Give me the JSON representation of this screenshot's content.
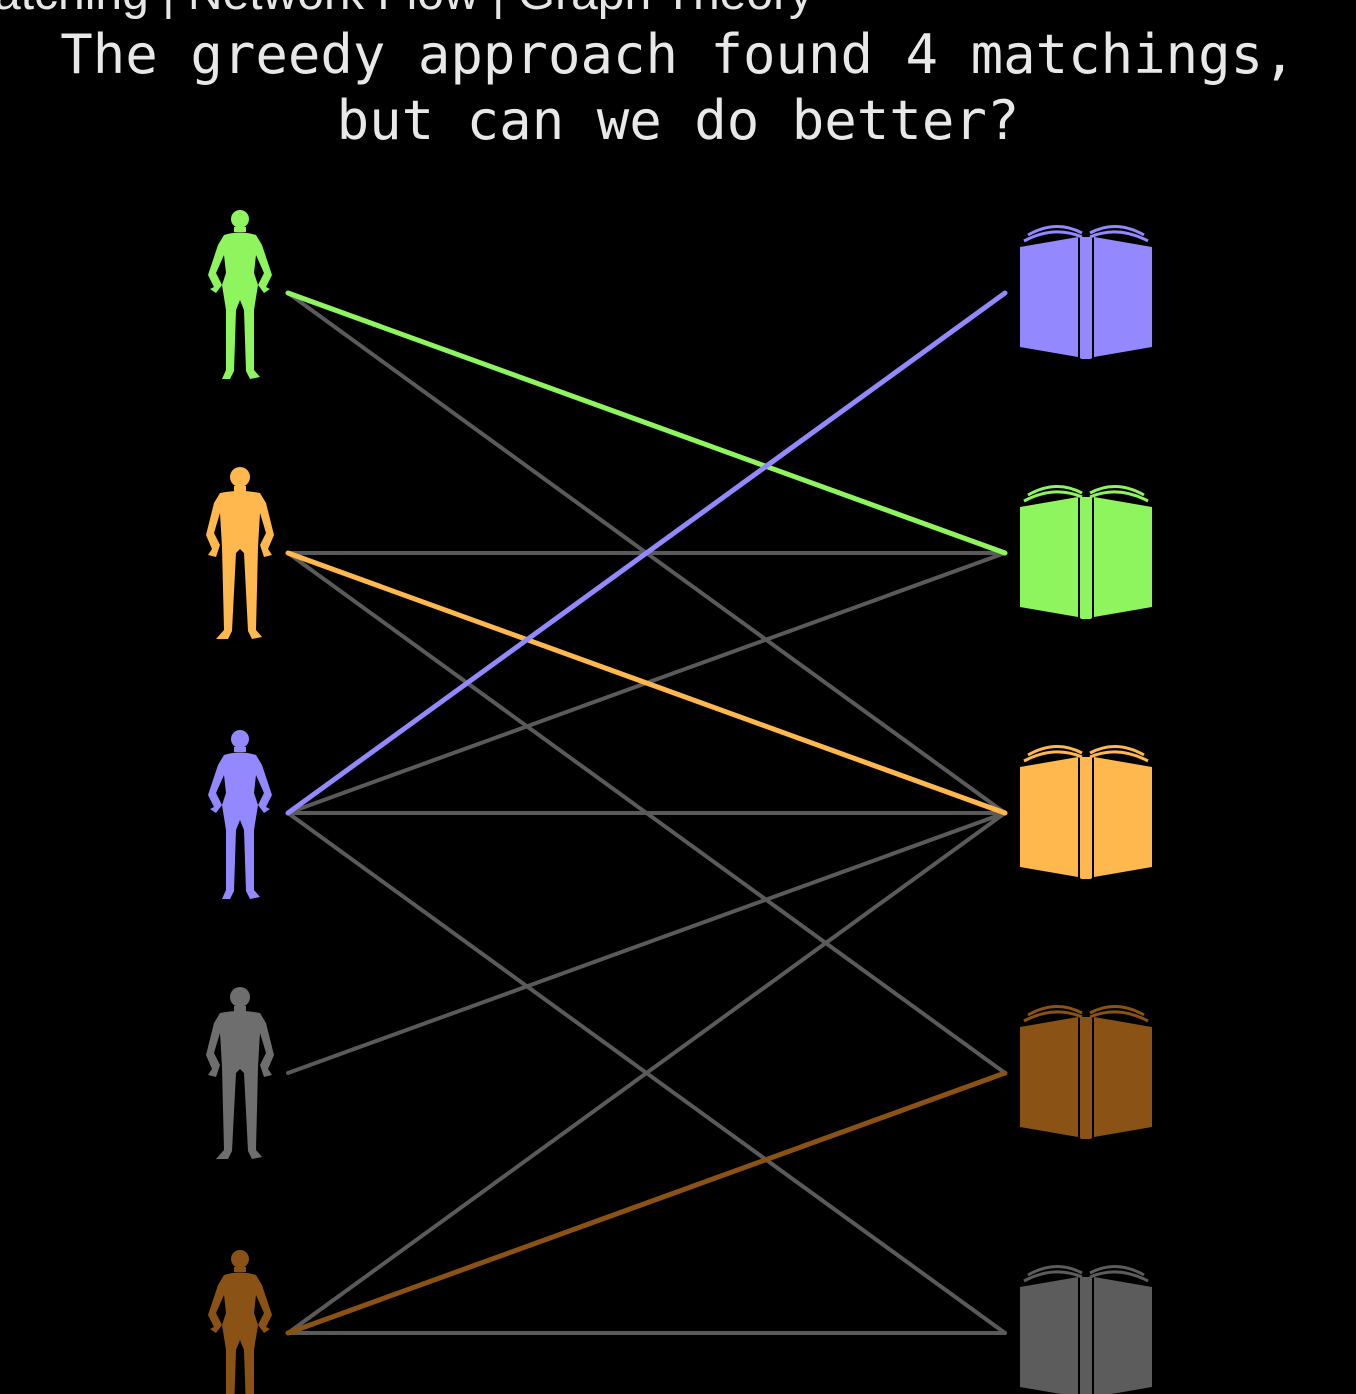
{
  "video_title": "atching | Network Flow | Graph Theory",
  "caption": {
    "line1": "The greedy approach found 4 matchings,",
    "line2": "but can we do better?"
  },
  "people": [
    {
      "name": "person-1",
      "color": "#8ff55f",
      "figure": "woman"
    },
    {
      "name": "person-2",
      "color": "#ffb84d",
      "figure": "man"
    },
    {
      "name": "person-3",
      "color": "#9488ff",
      "figure": "woman"
    },
    {
      "name": "person-4",
      "color": "#6e6e6e",
      "figure": "man"
    },
    {
      "name": "person-5",
      "color": "#8a5214",
      "figure": "woman"
    }
  ],
  "books": [
    {
      "name": "book-1",
      "color": "#9488ff"
    },
    {
      "name": "book-2",
      "color": "#8ff55f"
    },
    {
      "name": "book-3",
      "color": "#ffb84d"
    },
    {
      "name": "book-4",
      "color": "#8a5214"
    },
    {
      "name": "book-5",
      "color": "#5c5c5c"
    }
  ],
  "edge_color": "#5a5a5a",
  "edges": [
    {
      "person": 1,
      "book": 3
    },
    {
      "person": 2,
      "book": 2
    },
    {
      "person": 2,
      "book": 4
    },
    {
      "person": 3,
      "book": 2
    },
    {
      "person": 3,
      "book": 3
    },
    {
      "person": 3,
      "book": 5
    },
    {
      "person": 4,
      "book": 3
    },
    {
      "person": 5,
      "book": 3
    },
    {
      "person": 5,
      "book": 5
    }
  ],
  "matched_edges": [
    {
      "person": 1,
      "book": 2,
      "color": "#8ff55f"
    },
    {
      "person": 2,
      "book": 3,
      "color": "#ffb84d"
    },
    {
      "person": 3,
      "book": 1,
      "color": "#9488ff"
    },
    {
      "person": 5,
      "book": 4,
      "color": "#8a5214"
    }
  ]
}
